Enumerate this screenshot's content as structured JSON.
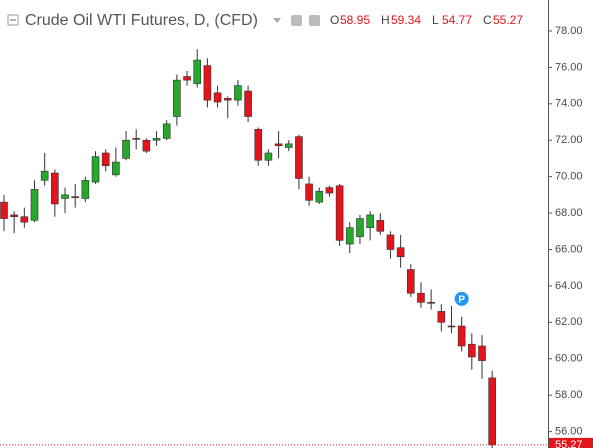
{
  "chart_data": {
    "type": "candlestick",
    "title": "Crude Oil WTI Futures, D, (CFD)",
    "ohlc_legend": [
      {
        "label": "O",
        "value": "58.95"
      },
      {
        "label": "H",
        "value": "59.34"
      },
      {
        "label": "L",
        "value": "54.77"
      },
      {
        "label": "C",
        "value": "55.27"
      }
    ],
    "up_color": "#26a82d",
    "down_color": "#e3141c",
    "open": [
      68.6,
      67.9,
      67.8,
      67.6,
      69.8,
      70.2,
      68.8,
      68.9,
      68.8,
      69.7,
      71.3,
      70.1,
      71.0,
      72.1,
      72.0,
      72.0,
      72.1,
      73.3,
      75.5,
      75.1,
      76.1,
      74.6,
      74.3,
      74.2,
      74.7,
      72.6,
      70.9,
      71.8,
      71.6,
      72.2,
      69.6,
      68.6,
      69.4,
      69.5,
      66.3,
      66.7,
      67.2,
      67.6,
      66.8,
      66.1,
      64.9,
      63.6,
      63.1,
      62.6,
      61.8,
      61.8,
      60.8,
      60.7,
      58.95
    ],
    "high": [
      69.0,
      68.1,
      68.3,
      69.8,
      71.3,
      70.4,
      69.4,
      69.6,
      70.0,
      71.4,
      71.5,
      71.6,
      72.5,
      72.6,
      72.1,
      72.5,
      73.1,
      75.6,
      75.8,
      77.0,
      76.5,
      75.0,
      74.4,
      75.3,
      75.0,
      72.7,
      71.5,
      72.5,
      72.0,
      72.3,
      70.0,
      69.4,
      69.5,
      69.6,
      67.5,
      67.9,
      68.1,
      68.0,
      67.0,
      66.8,
      65.2,
      64.2,
      63.8,
      63.0,
      62.9,
      62.3,
      61.4,
      61.3,
      59.34
    ],
    "low": [
      67.0,
      66.9,
      67.2,
      67.5,
      69.5,
      67.8,
      68.0,
      68.3,
      68.6,
      69.6,
      70.3,
      70.0,
      70.9,
      71.5,
      71.3,
      71.7,
      72.0,
      72.8,
      75.0,
      74.9,
      73.8,
      73.8,
      73.2,
      73.9,
      73.0,
      70.6,
      70.6,
      71.0,
      71.4,
      69.3,
      68.4,
      68.5,
      68.9,
      66.2,
      65.8,
      66.3,
      66.5,
      66.8,
      65.5,
      65.0,
      63.4,
      62.8,
      62.7,
      61.5,
      61.4,
      60.4,
      59.4,
      58.9,
      54.77
    ],
    "close": [
      67.7,
      67.8,
      67.5,
      69.3,
      70.3,
      68.5,
      69.0,
      68.9,
      69.8,
      71.1,
      70.6,
      70.8,
      72.0,
      72.1,
      71.4,
      72.1,
      72.9,
      75.3,
      75.3,
      76.4,
      74.2,
      74.1,
      74.2,
      75.0,
      73.3,
      70.9,
      71.3,
      71.7,
      71.8,
      69.9,
      68.7,
      69.2,
      69.1,
      66.5,
      67.2,
      67.7,
      67.9,
      67.0,
      66.0,
      65.6,
      63.6,
      63.1,
      63.1,
      62.0,
      61.8,
      60.7,
      60.1,
      59.9,
      55.27
    ],
    "last_price": "55.27",
    "marker_label": "P",
    "ylim": [
      55.1,
      79.7
    ],
    "yticks": [
      {
        "value": 56,
        "label": "56.00"
      },
      {
        "value": 58,
        "label": "58.00"
      },
      {
        "value": 60,
        "label": "60.00"
      },
      {
        "value": 62,
        "label": "62.00"
      },
      {
        "value": 64,
        "label": "64.00"
      },
      {
        "value": 66,
        "label": "66.00"
      },
      {
        "value": 68,
        "label": "68.00"
      },
      {
        "value": 70,
        "label": "70.00"
      },
      {
        "value": 72,
        "label": "72.00"
      },
      {
        "value": 74,
        "label": "74.00"
      },
      {
        "value": 76,
        "label": "76.00"
      },
      {
        "value": 78,
        "label": "78.00"
      }
    ]
  }
}
